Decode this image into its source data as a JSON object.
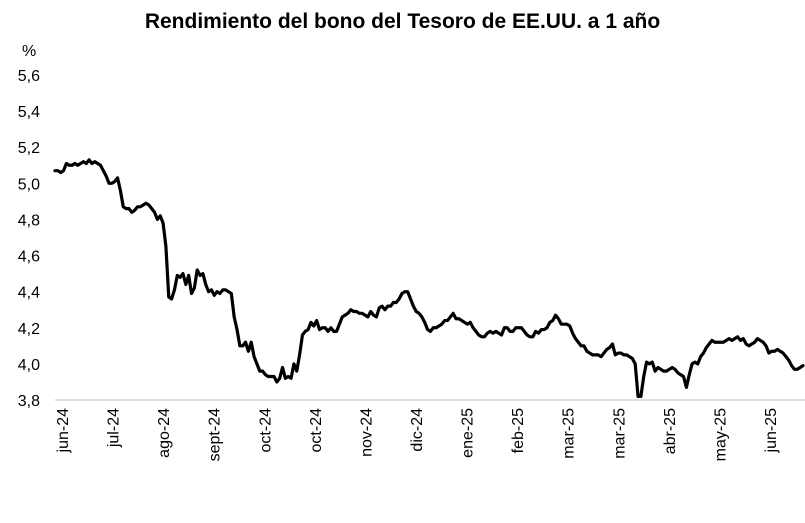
{
  "chart_data": {
    "type": "line",
    "title": "Rendimiento del bono del Tesoro de EE.UU. a 1 año",
    "ylabel": "%",
    "ylim": [
      3.8,
      5.6
    ],
    "yticks": [
      "3,8",
      "4,0",
      "4,2",
      "4,4",
      "4,6",
      "4,8",
      "5,0",
      "5,2",
      "5,4",
      "5,6"
    ],
    "ytick_values": [
      3.8,
      4.0,
      4.2,
      4.4,
      4.6,
      4.8,
      5.0,
      5.2,
      5.4,
      5.6
    ],
    "xticks": [
      "jun-24",
      "jul-24",
      "ago-24",
      "sept-24",
      "oct-24",
      "oct-24",
      "nov-24",
      "dic-24",
      "ene-25",
      "feb-25",
      "mar-25",
      "mar-25",
      "abr-25",
      "may-25",
      "jun-25"
    ],
    "grid": false,
    "legend": "none",
    "line_color": "#000000",
    "series": [
      {
        "values": [
          5.07,
          5.07,
          5.06,
          5.07,
          5.11,
          5.1,
          5.1,
          5.11,
          5.1,
          5.11,
          5.12,
          5.11,
          5.13,
          5.11,
          5.12,
          5.11,
          5.1,
          5.07,
          5.04,
          5.0,
          5.0,
          5.01,
          5.03,
          4.96,
          4.87,
          4.86,
          4.86,
          4.84,
          4.85,
          4.87,
          4.87,
          4.88,
          4.89,
          4.88,
          4.86,
          4.84,
          4.8,
          4.82,
          4.78,
          4.65,
          4.37,
          4.36,
          4.41,
          4.49,
          4.48,
          4.5,
          4.44,
          4.49,
          4.39,
          4.42,
          4.52,
          4.49,
          4.5,
          4.44,
          4.4,
          4.41,
          4.38,
          4.4,
          4.39,
          4.41,
          4.41,
          4.4,
          4.39,
          4.26,
          4.19,
          4.1,
          4.1,
          4.12,
          4.07,
          4.12,
          4.04,
          4.0,
          3.96,
          3.96,
          3.94,
          3.93,
          3.93,
          3.93,
          3.9,
          3.92,
          3.98,
          3.92,
          3.93,
          3.92,
          4.0,
          3.96,
          4.05,
          4.16,
          4.18,
          4.19,
          4.23,
          4.21,
          4.24,
          4.19,
          4.2,
          4.2,
          4.18,
          4.2,
          4.18,
          4.18,
          4.22,
          4.26,
          4.27,
          4.28,
          4.3,
          4.29,
          4.29,
          4.28,
          4.28,
          4.27,
          4.26,
          4.29,
          4.27,
          4.26,
          4.31,
          4.32,
          4.3,
          4.32,
          4.32,
          4.34,
          4.34,
          4.36,
          4.39,
          4.4,
          4.4,
          4.36,
          4.32,
          4.29,
          4.28,
          4.26,
          4.23,
          4.19,
          4.18,
          4.2,
          4.2,
          4.21,
          4.22,
          4.24,
          4.24,
          4.26,
          4.28,
          4.25,
          4.25,
          4.24,
          4.23,
          4.22,
          4.23,
          4.2,
          4.18,
          4.16,
          4.15,
          4.15,
          4.17,
          4.18,
          4.17,
          4.18,
          4.17,
          4.16,
          4.2,
          4.2,
          4.18,
          4.18,
          4.2,
          4.2,
          4.2,
          4.18,
          4.16,
          4.15,
          4.15,
          4.18,
          4.17,
          4.19,
          4.19,
          4.2,
          4.23,
          4.24,
          4.27,
          4.25,
          4.22,
          4.22,
          4.22,
          4.21,
          4.17,
          4.14,
          4.12,
          4.1,
          4.1,
          4.07,
          4.06,
          4.05,
          4.05,
          4.05,
          4.04,
          4.06,
          4.08,
          4.09,
          4.11,
          4.05,
          4.06,
          4.06,
          4.05,
          4.05,
          4.04,
          4.03,
          4.0,
          3.82,
          3.82,
          3.93,
          4.01,
          4.0,
          4.01,
          3.96,
          3.98,
          3.97,
          3.96,
          3.96,
          3.97,
          3.98,
          3.97,
          3.95,
          3.94,
          3.93,
          3.87,
          3.94,
          4.0,
          4.01,
          4.0,
          4.04,
          4.06,
          4.09,
          4.11,
          4.13,
          4.12,
          4.12,
          4.12,
          4.12,
          4.13,
          4.14,
          4.13,
          4.14,
          4.15,
          4.13,
          4.14,
          4.11,
          4.1,
          4.11,
          4.12,
          4.14,
          4.13,
          4.12,
          4.1,
          4.06,
          4.07,
          4.07,
          4.08,
          4.07,
          4.06,
          4.04,
          4.02,
          3.99,
          3.97,
          3.97,
          3.98,
          3.99
        ]
      }
    ]
  }
}
